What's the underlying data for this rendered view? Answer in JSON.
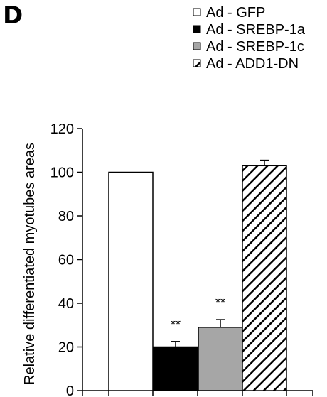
{
  "panel_label": "D",
  "chart_data": {
    "type": "bar",
    "categories": [
      "Ad - GFP",
      "Ad - SREBP-1a",
      "Ad - SREBP-1c",
      "Ad - ADD1-DN"
    ],
    "values": [
      100,
      20,
      29,
      103
    ],
    "errors": [
      0,
      2.5,
      3.5,
      2.5
    ],
    "annotations": [
      "",
      "**",
      "**",
      ""
    ],
    "fills": [
      "#ffffff",
      "#000000",
      "#a6a6a6",
      "hatch"
    ],
    "ylabel": "Relative differentiated myotubes areas",
    "xlabel": "",
    "ylim": [
      0,
      120
    ],
    "yticks": [
      0,
      20,
      40,
      60,
      80,
      100,
      120
    ],
    "legend": [
      {
        "label": "Ad - GFP",
        "swatch": "white"
      },
      {
        "label": "Ad - SREBP-1a",
        "swatch": "black"
      },
      {
        "label": "Ad - SREBP-1c",
        "swatch": "gray"
      },
      {
        "label": "Ad - ADD1-DN",
        "swatch": "hatch"
      }
    ],
    "legend_position": "top-right",
    "grid": false
  }
}
